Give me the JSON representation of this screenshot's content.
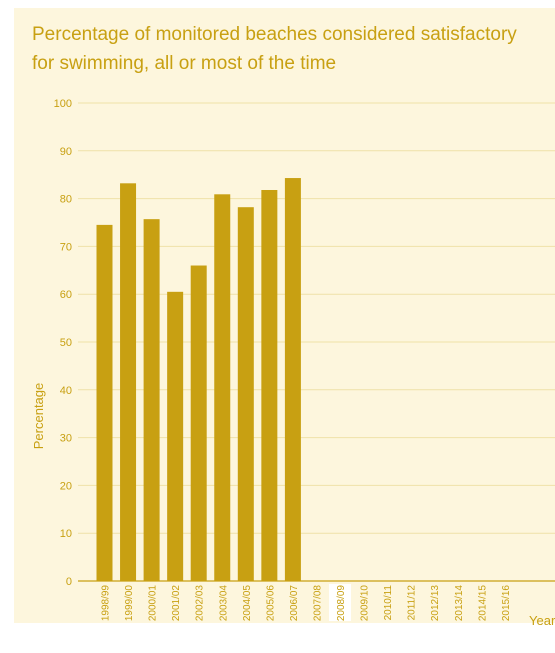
{
  "chart_data": {
    "type": "bar",
    "title": "Percentage of monitored beaches considered satisfactory\nfor swimming, all or most of the time",
    "xlabel": "Year",
    "ylabel": "Percentage",
    "ylim": [
      0,
      100
    ],
    "yticks": [
      0,
      10,
      20,
      30,
      40,
      50,
      60,
      70,
      80,
      90,
      100
    ],
    "grid": true,
    "highlighted_category": "2008/09",
    "categories": [
      "1998/99",
      "1999/00",
      "2000/01",
      "2001/02",
      "2002/03",
      "2003/04",
      "2004/05",
      "2005/06",
      "2006/07",
      "2007/08",
      "2008/09",
      "2009/10",
      "2010/11",
      "2011/12",
      "2012/13",
      "2013/14",
      "2014/15",
      "2015/16"
    ],
    "values": [
      74.5,
      83.2,
      75.7,
      60.5,
      66,
      80.9,
      78.2,
      81.8,
      84.3,
      null,
      null,
      null,
      null,
      null,
      null,
      null,
      null,
      null
    ]
  },
  "colors": {
    "bar": "#c8a012",
    "text": "#c8a012",
    "panel_background": "#fdf6dd",
    "gridline": "#efe1a8",
    "axis": "#c8a012",
    "highlight_background": "#ffffff"
  }
}
